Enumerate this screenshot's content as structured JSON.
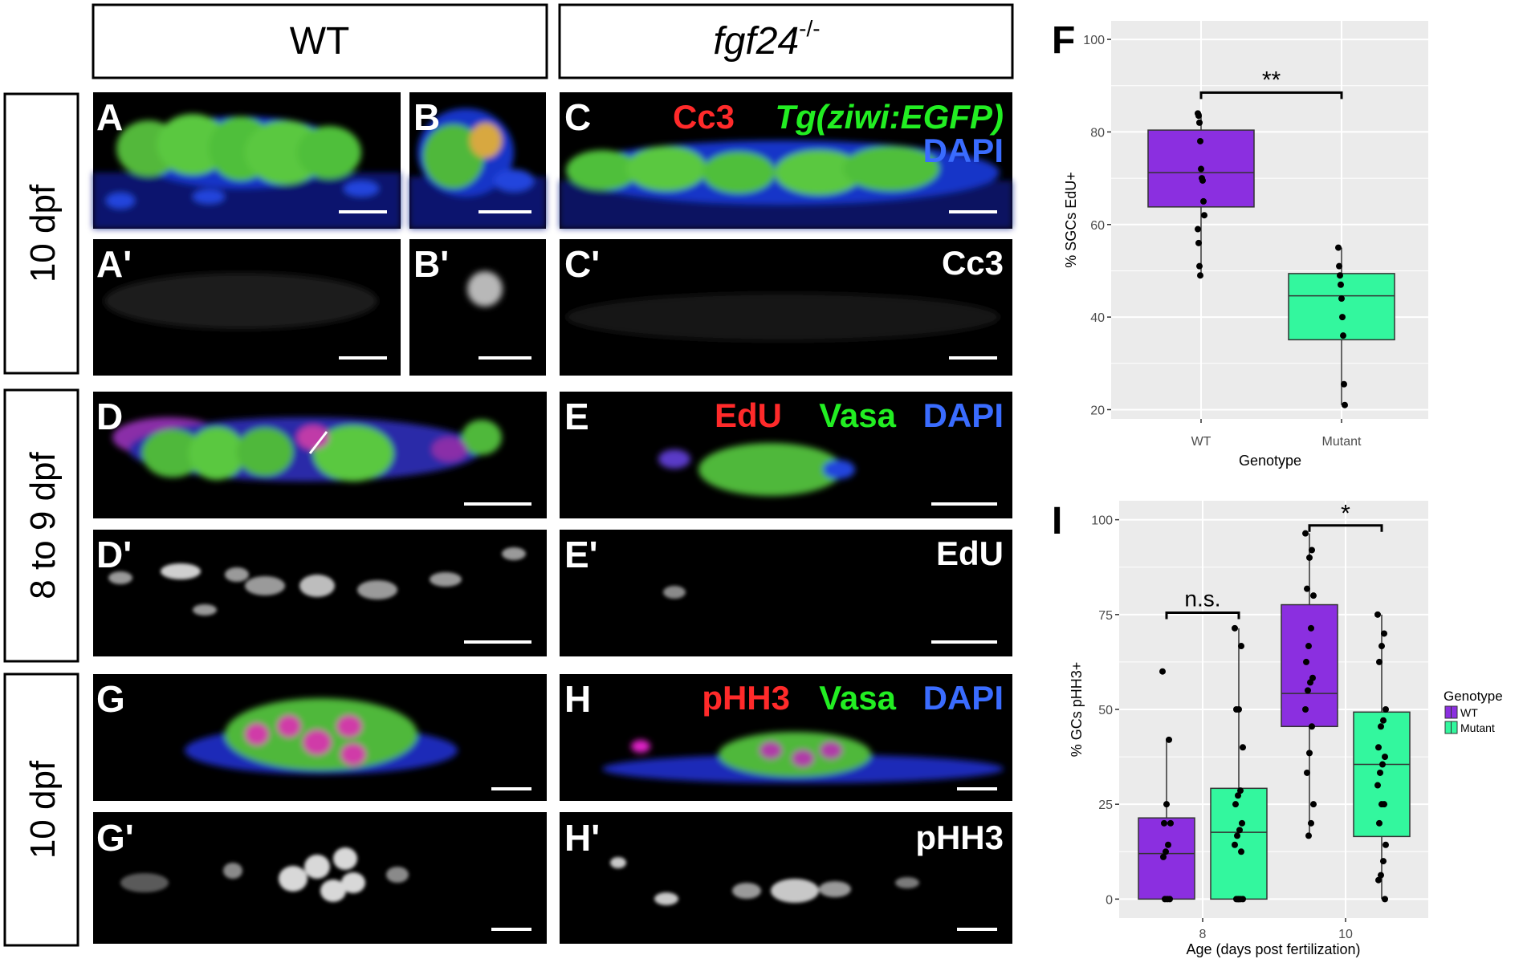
{
  "column_headers": {
    "wt": "WT",
    "mutant_base": "fgf24",
    "mutant_sup": "-/-"
  },
  "row_labels": [
    "10 dpf",
    "8 to 9 dpf",
    "10 dpf"
  ],
  "panel_letters": [
    "A",
    "B",
    "C",
    "A'",
    "B'",
    "C'",
    "D",
    "E",
    "D'",
    "E'",
    "G",
    "H",
    "G'",
    "H'"
  ],
  "channel_labels": {
    "row1": {
      "red": "Cc3",
      "green": "Tg(ziwi:EGFP)",
      "blue": "DAPI",
      "single": "Cc3"
    },
    "row2": {
      "red": "EdU",
      "green": "Vasa",
      "blue": "DAPI",
      "single": "EdU"
    },
    "row3": {
      "red": "pHH3",
      "green": "Vasa",
      "blue": "DAPI",
      "single": "pHH3"
    }
  },
  "colors": {
    "wt": "#8b2fe0",
    "mutant": "#33f79e",
    "panel_bg": "#ebebeb",
    "label_red": "#ff2a2a",
    "label_green": "#22ee22",
    "label_blue": "#3a6cff"
  },
  "chart_data": [
    {
      "panel": "F",
      "type": "box",
      "xlabel": "Genotype",
      "ylabel": "% SGCs EdU+",
      "categories": [
        "WT",
        "Mutant"
      ],
      "ylim": [
        18,
        104
      ],
      "yticks": [
        "20",
        "40",
        "60",
        "80",
        "100"
      ],
      "grid": true,
      "series": [
        {
          "name": "WT",
          "q1": 63.8,
          "median": 71.2,
          "q3": 80.4,
          "whisker_low": 49,
          "whisker_high": 84,
          "points": [
            84,
            83.5,
            82,
            78,
            72,
            70,
            69.5,
            65,
            62,
            59,
            56,
            51,
            49
          ]
        },
        {
          "name": "Mutant",
          "q1": 35.1,
          "median": 44.6,
          "q3": 49.4,
          "whisker_low": 21,
          "whisker_high": 55,
          "points": [
            55,
            51,
            49,
            47,
            44,
            40,
            36,
            25.5,
            21
          ]
        }
      ],
      "annotations": [
        {
          "text": "**",
          "between": [
            "WT",
            "Mutant"
          ]
        }
      ]
    },
    {
      "panel": "I",
      "type": "box",
      "xlabel": "Age (days post fertilization)",
      "ylabel": "% GCs pHH3+",
      "categories": [
        "8",
        "10"
      ],
      "ylim": [
        -5,
        105
      ],
      "yticks": [
        "0",
        "25",
        "50",
        "75",
        "100"
      ],
      "grid": true,
      "legend": {
        "title": "Genotype",
        "entries": [
          "WT",
          "Mutant"
        ],
        "position": "right"
      },
      "series": [
        {
          "name": "WT",
          "boxes": [
            {
              "category": "8",
              "q1": 0,
              "median": 12,
              "q3": 21.4,
              "whisker_low": 0,
              "whisker_high": 42,
              "points": [
                60,
                42,
                25,
                20,
                20,
                14.3,
                12.5,
                11.1,
                0,
                0,
                0
              ]
            },
            {
              "category": "10",
              "q1": 45.5,
              "median": 54.2,
              "q3": 77.6,
              "whisker_low": 16.7,
              "whisker_high": 96.4,
              "points": [
                96.4,
                92,
                90,
                81.8,
                80,
                71.4,
                66.7,
                62.5,
                58.3,
                57.1,
                55,
                50,
                45.5,
                38.5,
                33.3,
                25,
                20,
                16.7
              ]
            }
          ]
        },
        {
          "name": "Mutant",
          "boxes": [
            {
              "category": "8",
              "q1": 0,
              "median": 17.6,
              "q3": 29.2,
              "whisker_low": 0,
              "whisker_high": 71.4,
              "points": [
                71.4,
                66.7,
                50,
                50,
                40,
                28.6,
                27.3,
                25,
                20,
                18.2,
                16.7,
                14.3,
                12.5,
                0,
                0,
                0,
                0,
                0
              ]
            },
            {
              "category": "10",
              "q1": 16.5,
              "median": 35.5,
              "q3": 49.3,
              "whisker_low": 0,
              "whisker_high": 75,
              "points": [
                75,
                70,
                66.7,
                62.5,
                50,
                47.1,
                45.5,
                40,
                37.5,
                35.5,
                33.3,
                30,
                25,
                25,
                20,
                14.3,
                10,
                6.3,
                5,
                0
              ]
            }
          ]
        }
      ],
      "annotations": [
        {
          "text": "n.s.",
          "category": "8"
        },
        {
          "text": "*",
          "category": "10"
        }
      ]
    }
  ]
}
